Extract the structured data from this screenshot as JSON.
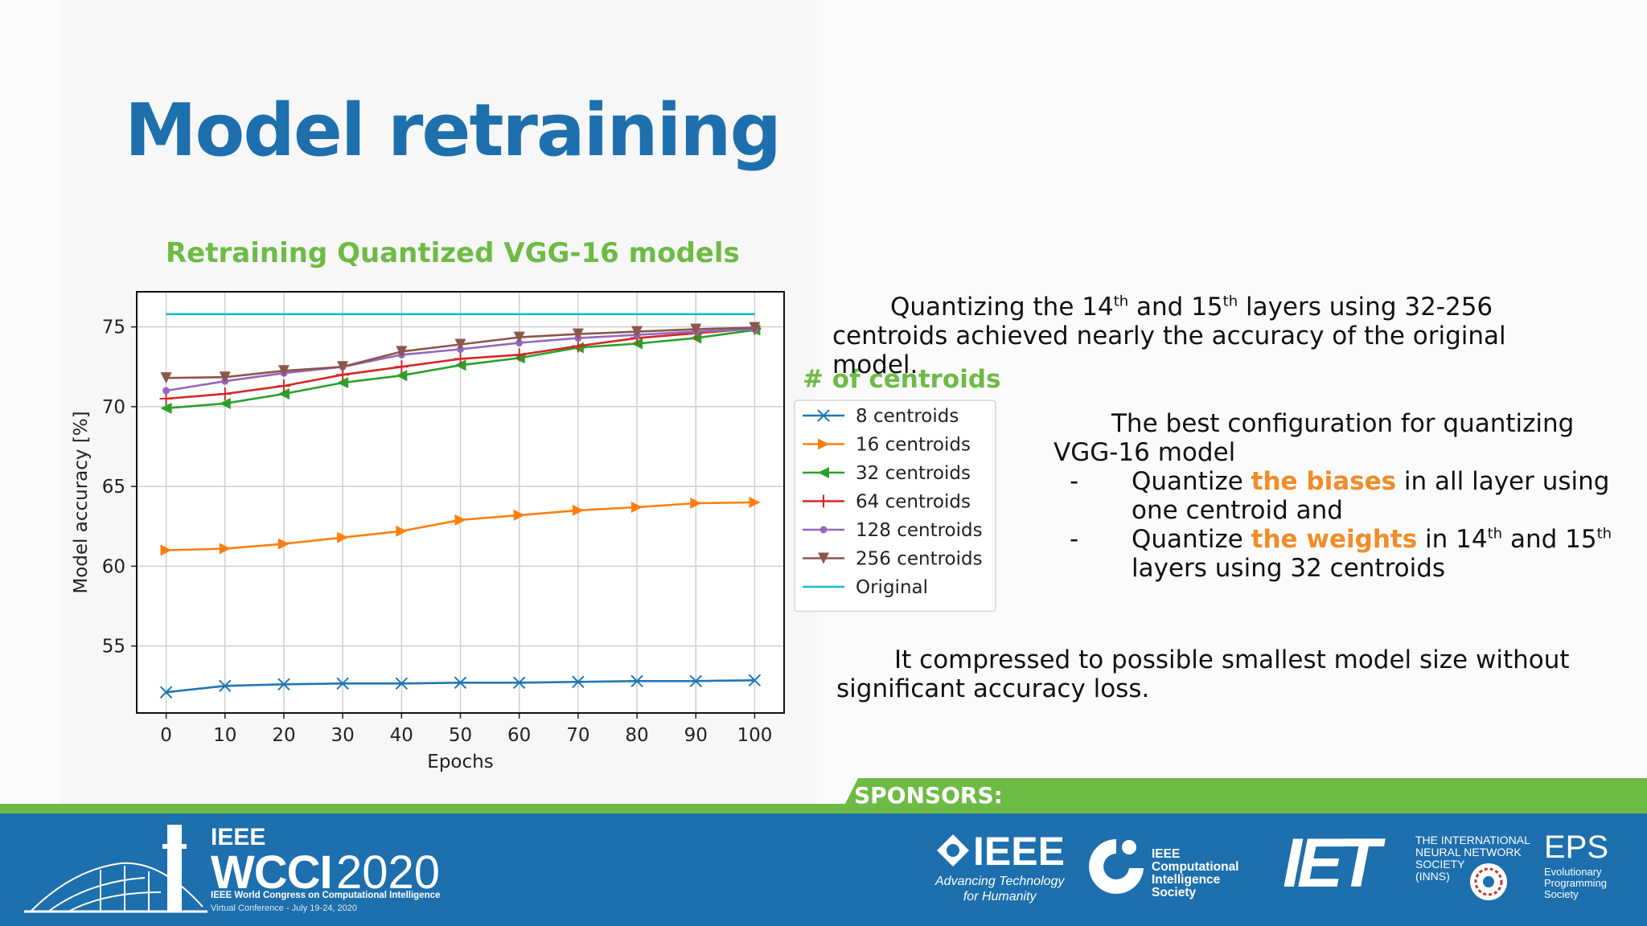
{
  "slide": {
    "title": "Model retraining",
    "chart_heading": "Retraining Quantized VGG-16 models"
  },
  "chart_data": {
    "type": "line",
    "xlabel": "Epochs",
    "ylabel": "Model accuracy [%]",
    "x": [
      0,
      10,
      20,
      30,
      40,
      50,
      60,
      70,
      80,
      90,
      100
    ],
    "xlim": [
      -5,
      105
    ],
    "ylim": [
      50.8,
      77.2
    ],
    "xticks": [
      0,
      10,
      20,
      30,
      40,
      50,
      60,
      70,
      80,
      90,
      100
    ],
    "yticks": [
      55,
      60,
      65,
      70,
      75
    ],
    "grid": true,
    "legend_title": "# of centroids",
    "legend_position": "right, outside plot",
    "series": [
      {
        "name": "8 centroids",
        "color": "#1f77b4",
        "marker": "x",
        "values": [
          52.1,
          52.5,
          52.6,
          52.65,
          52.65,
          52.7,
          52.7,
          52.75,
          52.8,
          52.8,
          52.85
        ]
      },
      {
        "name": "16 centroids",
        "color": "#ff7f0e",
        "marker": "triangle-right",
        "values": [
          61.0,
          61.1,
          61.4,
          61.8,
          62.2,
          62.9,
          63.2,
          63.5,
          63.7,
          63.95,
          64.0
        ]
      },
      {
        "name": "32 centroids",
        "color": "#2ca02c",
        "marker": "triangle-left",
        "values": [
          69.9,
          70.2,
          70.8,
          71.5,
          71.95,
          72.6,
          73.05,
          73.7,
          73.95,
          74.3,
          74.8
        ]
      },
      {
        "name": "64 centroids",
        "color": "#d62728",
        "marker": "plus",
        "values": [
          70.5,
          70.8,
          71.3,
          72.0,
          72.5,
          73.0,
          73.25,
          73.8,
          74.3,
          74.6,
          74.9
        ]
      },
      {
        "name": "128 centroids",
        "color": "#9467bd",
        "marker": "dot",
        "values": [
          71.0,
          71.6,
          72.1,
          72.5,
          73.25,
          73.6,
          74.0,
          74.3,
          74.5,
          74.7,
          74.85
        ]
      },
      {
        "name": "256 centroids",
        "color": "#8c564b",
        "marker": "triangle-down",
        "values": [
          71.8,
          71.85,
          72.25,
          72.5,
          73.45,
          73.9,
          74.35,
          74.55,
          74.7,
          74.85,
          74.95
        ]
      },
      {
        "name": "Original",
        "color": "#17becf",
        "marker": "none",
        "values": [
          75.8,
          75.8,
          75.8,
          75.8,
          75.8,
          75.8,
          75.8,
          75.8,
          75.8,
          75.8,
          75.8
        ]
      }
    ]
  },
  "text": {
    "p1_a": "Quantizing the 14",
    "p1_sup1": "th",
    "p1_b": " and 15",
    "p1_sup2": "th",
    "p1_c": " layers using 32-256",
    "p1_line2": "centroids achieved nearly the accuracy of the original",
    "p1_line3": "model.",
    "p2_line1": "The best configuration for quantizing",
    "p2_line2": "VGG-16 model",
    "dash": "-",
    "b1_pre": "Quantize ",
    "b1_hl": "the biases",
    "b1_post": " in all layer using",
    "b1_line2": "one centroid and",
    "b2_pre": "Quantize ",
    "b2_hl": "the weights",
    "b2_mid": " in 14",
    "b2_sup1": "th",
    "b2_and": " and 15",
    "b2_sup2": "th",
    "b2_line2": "layers using 32 centroids",
    "p3_line1": "It compressed to possible smallest model size without",
    "p3_line2": "significant accuracy loss."
  },
  "footer": {
    "sponsors_label": "SPONSORS:",
    "wcci_ieee": "IEEE",
    "wcci_name": "WCCI",
    "wcci_year": "2020",
    "wcci_full": "IEEE World Congress on Computational Intelligence",
    "wcci_dates": "Virtual Conference - July 19-24, 2020",
    "sponsor_ieee": "IEEE",
    "sponsor_ieee_tagline": "Advancing Technology\nfor Humanity",
    "sponsor_cis": "IEEE\nComputational\nIntelligence\nSociety",
    "sponsor_iet": "IET",
    "sponsor_inns": "THE INTERNATIONAL\nNEURAL NETWORK\nSOCIETY\n(INNS)",
    "sponsor_eps": "EPS",
    "sponsor_eps_sub": "Evolutionary\nProgramming\nSociety"
  }
}
